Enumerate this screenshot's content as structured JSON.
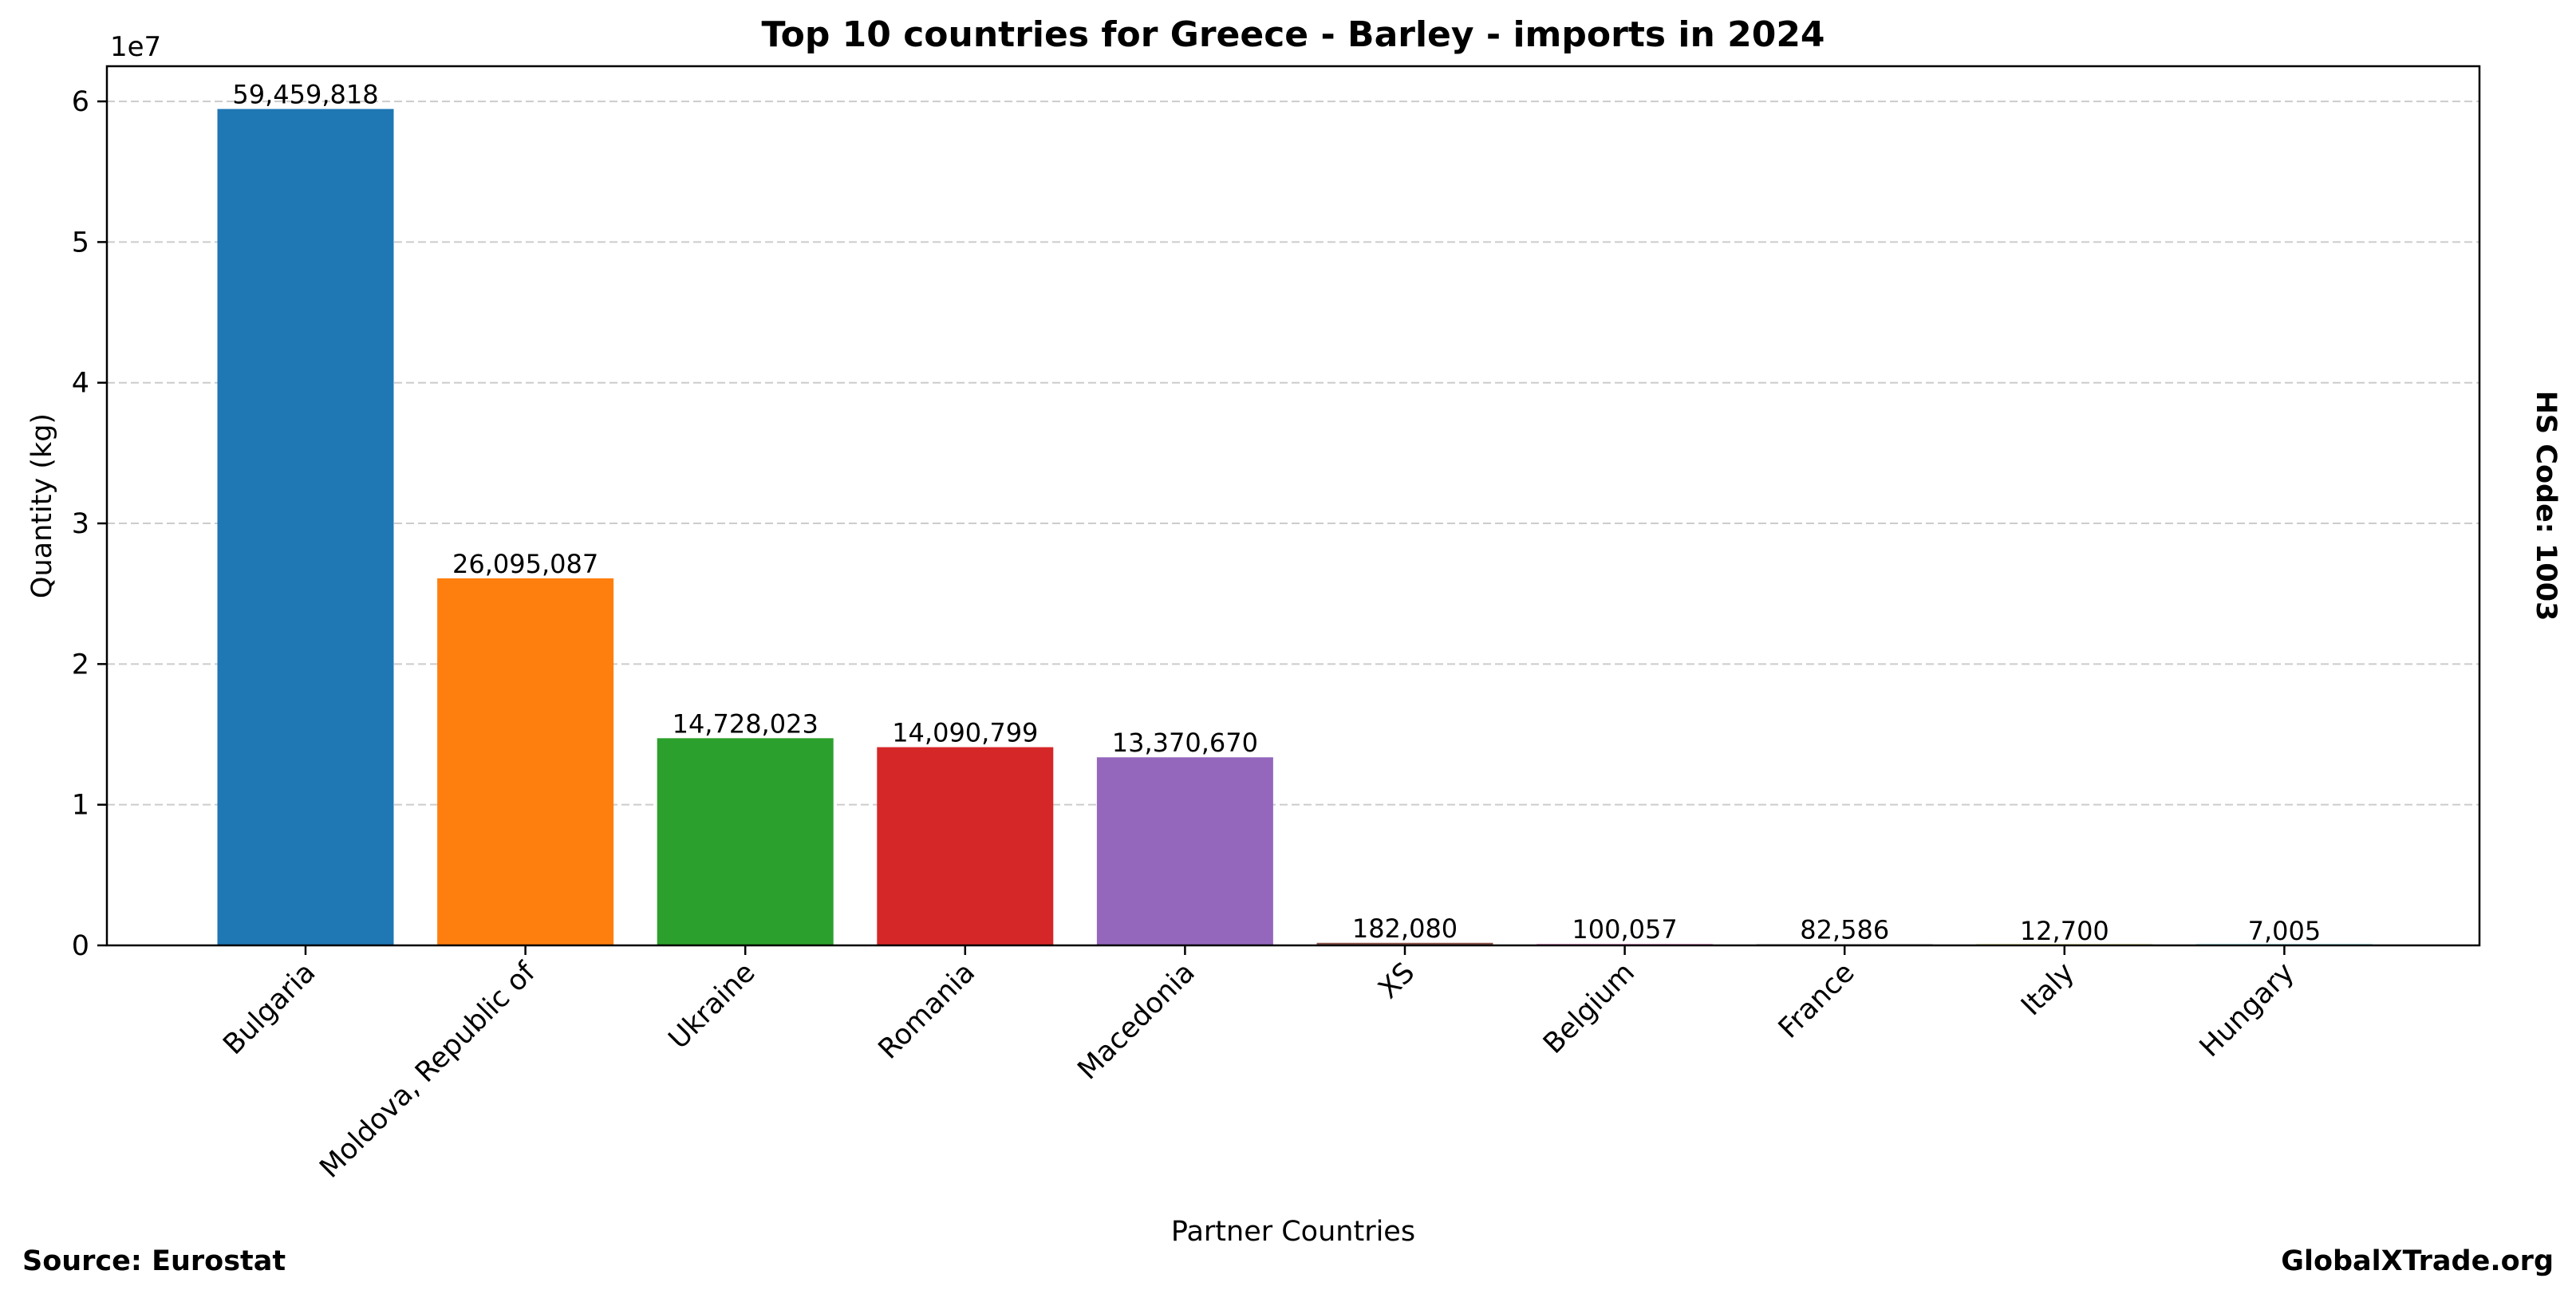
{
  "chart_data": {
    "type": "bar",
    "title": "Top 10 countries for Greece - Barley - imports in 2024",
    "xlabel": "Partner Countries",
    "ylabel": "Quantity (kg)",
    "y_offset_label": "1e7",
    "side_label": "HS Code: 1003",
    "categories": [
      "Bulgaria",
      "Moldova, Republic of",
      "Ukraine",
      "Romania",
      "Macedonia",
      "XS",
      "Belgium",
      "France",
      "Italy",
      "Hungary"
    ],
    "values": [
      59459818,
      26095087,
      14728023,
      14090799,
      13370670,
      182080,
      100057,
      82586,
      12700,
      7005
    ],
    "value_labels": [
      "59,459,818",
      "26,095,087",
      "14,728,023",
      "14,090,799",
      "13,370,670",
      "182,080",
      "100,057",
      "82,586",
      "12,700",
      "7,005"
    ],
    "colors": [
      "#1f77b4",
      "#ff7f0e",
      "#2ca02c",
      "#d62728",
      "#9467bd",
      "#8c564b",
      "#e377c2",
      "#7f7f7f",
      "#bcbd22",
      "#17becf"
    ],
    "ylim": [
      0,
      62500000
    ],
    "yticks": [
      0,
      10000000,
      20000000,
      30000000,
      40000000,
      50000000,
      60000000
    ],
    "ytick_labels": [
      "0",
      "1",
      "2",
      "3",
      "4",
      "5",
      "6"
    ],
    "grid": "y-dashed",
    "legend": "none"
  },
  "footer": {
    "source": "Source: Eurostat",
    "brand": "GlobalXTrade.org"
  }
}
